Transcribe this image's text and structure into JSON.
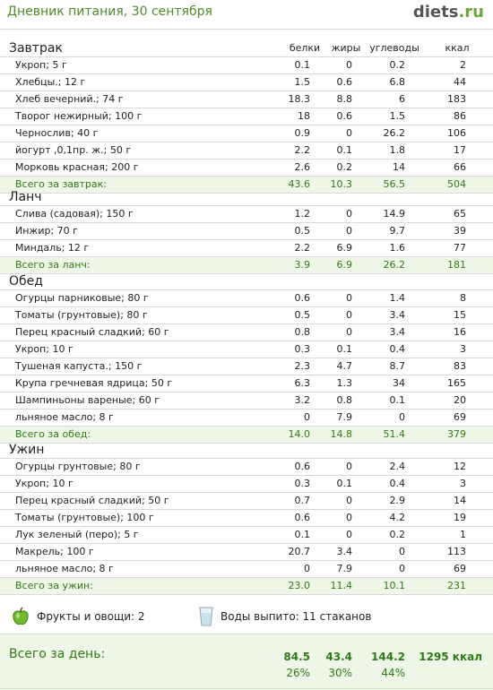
{
  "header": {
    "title": "Дневник питания, 30 сентября",
    "logo_main": "diets",
    "logo_tld": ".ru"
  },
  "columns": [
    "белки",
    "жиры",
    "углеводы",
    "ккал"
  ],
  "meals": [
    {
      "title": "Завтрак",
      "items": [
        {
          "name": "Укроп; 5 г",
          "v": [
            "0.1",
            "0",
            "0.2",
            "2"
          ]
        },
        {
          "name": "Хлебцы.; 12 г",
          "v": [
            "1.5",
            "0.6",
            "6.8",
            "44"
          ]
        },
        {
          "name": "Хлеб вечерний.; 74 г",
          "v": [
            "18.3",
            "8.8",
            "6",
            "183"
          ]
        },
        {
          "name": "Творог нежирный; 100 г",
          "v": [
            "18",
            "0.6",
            "1.5",
            "86"
          ]
        },
        {
          "name": "Чернослив; 40 г",
          "v": [
            "0.9",
            "0",
            "26.2",
            "106"
          ]
        },
        {
          "name": "йогурт ,0,1пр. ж.; 50 г",
          "v": [
            "2.2",
            "0.1",
            "1.8",
            "17"
          ]
        },
        {
          "name": "Морковь красная; 200 г",
          "v": [
            "2.6",
            "0.2",
            "14",
            "66"
          ]
        }
      ],
      "total": {
        "name": "Всего за завтрак:",
        "v": [
          "43.6",
          "10.3",
          "56.5",
          "504"
        ]
      }
    },
    {
      "title": "Ланч",
      "items": [
        {
          "name": "Слива (садовая); 150 г",
          "v": [
            "1.2",
            "0",
            "14.9",
            "65"
          ]
        },
        {
          "name": "Инжир; 70 г",
          "v": [
            "0.5",
            "0",
            "9.7",
            "39"
          ]
        },
        {
          "name": "Миндаль; 12 г",
          "v": [
            "2.2",
            "6.9",
            "1.6",
            "77"
          ]
        }
      ],
      "total": {
        "name": "Всего за ланч:",
        "v": [
          "3.9",
          "6.9",
          "26.2",
          "181"
        ]
      }
    },
    {
      "title": "Обед",
      "items": [
        {
          "name": "Огурцы парниковые; 80 г",
          "v": [
            "0.6",
            "0",
            "1.4",
            "8"
          ]
        },
        {
          "name": "Томаты (грунтовые); 80 г",
          "v": [
            "0.5",
            "0",
            "3.4",
            "15"
          ]
        },
        {
          "name": "Перец красный сладкий; 60 г",
          "v": [
            "0.8",
            "0",
            "3.4",
            "16"
          ]
        },
        {
          "name": "Укроп; 10 г",
          "v": [
            "0.3",
            "0.1",
            "0.4",
            "3"
          ]
        },
        {
          "name": "Тушеная капуста.; 150 г",
          "v": [
            "2.3",
            "4.7",
            "8.7",
            "83"
          ]
        },
        {
          "name": "Крупа гречневая ядрица; 50 г",
          "v": [
            "6.3",
            "1.3",
            "34",
            "165"
          ]
        },
        {
          "name": "Шампиньоны вареные; 60 г",
          "v": [
            "3.2",
            "0.8",
            "0.1",
            "20"
          ]
        },
        {
          "name": "льняное масло; 8 г",
          "v": [
            "0",
            "7.9",
            "0",
            "69"
          ]
        }
      ],
      "total": {
        "name": "Всего за обед:",
        "v": [
          "14.0",
          "14.8",
          "51.4",
          "379"
        ]
      }
    },
    {
      "title": "Ужин",
      "items": [
        {
          "name": "Огурцы грунтовые; 80 г",
          "v": [
            "0.6",
            "0",
            "2.4",
            "12"
          ]
        },
        {
          "name": "Укроп; 10 г",
          "v": [
            "0.3",
            "0.1",
            "0.4",
            "3"
          ]
        },
        {
          "name": "Перец красный сладкий; 50 г",
          "v": [
            "0.7",
            "0",
            "2.9",
            "14"
          ]
        },
        {
          "name": "Томаты (грунтовые); 100 г",
          "v": [
            "0.6",
            "0",
            "4.2",
            "19"
          ]
        },
        {
          "name": "Лук зеленый (перо); 5 г",
          "v": [
            "0.1",
            "0",
            "0.2",
            "1"
          ]
        },
        {
          "name": "Макрель; 100 г",
          "v": [
            "20.7",
            "3.4",
            "0",
            "113"
          ]
        },
        {
          "name": "льняное масло; 8 г",
          "v": [
            "0",
            "7.9",
            "0",
            "69"
          ]
        }
      ],
      "total": {
        "name": "Всего за ужин:",
        "v": [
          "23.0",
          "11.4",
          "10.1",
          "231"
        ]
      }
    }
  ],
  "footer": {
    "fruits_label": "Фрукты и овощи: 2",
    "fruits_icon": "apple-icon",
    "water_label": "Воды выпито: 11 стаканов",
    "water_icon": "glass-icon"
  },
  "day_total": {
    "label": "Всего за день:",
    "protein": "84.5",
    "fat": "43.4",
    "carbs": "144.2",
    "kcal": "1295 ккал",
    "protein_pct": "26%",
    "fat_pct": "30%",
    "carbs_pct": "44%"
  },
  "colors": {
    "accent_green": "#2f7a17",
    "total_bg": "#eef7e7",
    "title_green": "#4e8b27"
  }
}
